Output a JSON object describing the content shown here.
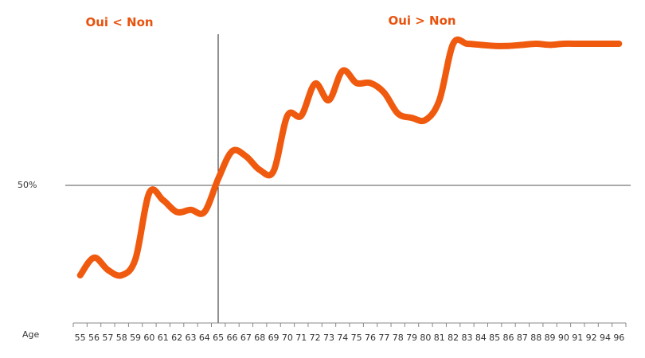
{
  "chart_data": {
    "type": "line",
    "x": [
      "55",
      "56",
      "57",
      "58",
      "59",
      "60",
      "61",
      "62",
      "63",
      "64",
      "65",
      "66",
      "67",
      "68",
      "69",
      "70",
      "71",
      "72",
      "73",
      "74",
      "75",
      "76",
      "77",
      "78",
      "79",
      "80",
      "81",
      "82",
      "83",
      "84",
      "85",
      "86",
      "87",
      "88",
      "89",
      "90",
      "91",
      "92",
      "94",
      "96"
    ],
    "values": [
      0.262,
      0.311,
      0.277,
      0.262,
      0.307,
      0.491,
      0.471,
      0.438,
      0.444,
      0.438,
      0.531,
      0.607,
      0.593,
      0.555,
      0.552,
      0.706,
      0.706,
      0.795,
      0.749,
      0.831,
      0.797,
      0.797,
      0.77,
      0.712,
      0.7,
      0.694,
      0.749,
      0.906,
      0.906,
      0.903,
      0.9,
      0.9,
      0.903,
      0.906,
      0.903,
      0.906,
      0.906,
      0.906,
      0.906,
      0.906
    ],
    "ylim": [
      0.12,
      0.97
    ],
    "y_reference": 0.5,
    "y_reference_label": "50%",
    "x_reference": "65",
    "xlabel": "Age",
    "annotations": {
      "left": "Oui < Non",
      "right": "Oui > Non"
    },
    "grid": false,
    "colors": {
      "line": "#f05a0f",
      "annotation": "#e8520e",
      "axis": "#333333",
      "reference": "#555555"
    }
  }
}
